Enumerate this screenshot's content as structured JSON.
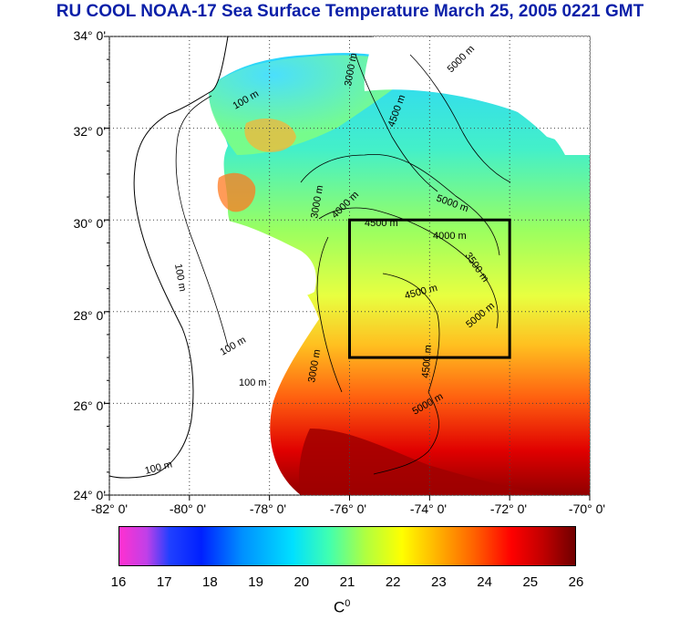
{
  "title": "RU COOL  NOAA-17 Sea Surface Temperature March 25, 2005 0221 GMT",
  "map": {
    "lat_ticks": [
      {
        "value": 34,
        "label": "34° 0'"
      },
      {
        "value": 32,
        "label": "32° 0'"
      },
      {
        "value": 30,
        "label": "30° 0'"
      },
      {
        "value": 28,
        "label": "28° 0'"
      },
      {
        "value": 26,
        "label": "26° 0'"
      },
      {
        "value": 24,
        "label": "24° 0'"
      }
    ],
    "lon_ticks": [
      {
        "value": -82,
        "label": "-82° 0'"
      },
      {
        "value": -80,
        "label": "-80° 0'"
      },
      {
        "value": -78,
        "label": "-78° 0'"
      },
      {
        "value": -76,
        "label": "-76° 0'"
      },
      {
        "value": -74,
        "label": "-74° 0'"
      },
      {
        "value": -72,
        "label": "-72° 0'"
      },
      {
        "value": -70,
        "label": "-70° 0'"
      }
    ],
    "lat_range": [
      24,
      34
    ],
    "lon_range": [
      -82,
      -70
    ],
    "box": {
      "lon_min": -76,
      "lon_max": -72,
      "lat_min": 27,
      "lat_max": 30
    },
    "contour_labels": [
      "100 m",
      "3000 m",
      "4000 m",
      "4500 m",
      "5000 m",
      "3500 m"
    ]
  },
  "colorbar": {
    "ticks": [
      "16",
      "17",
      "18",
      "19",
      "20",
      "21",
      "22",
      "23",
      "24",
      "25",
      "26"
    ],
    "range": [
      16,
      26
    ],
    "unit_base": "C",
    "unit_sup": "0"
  }
}
